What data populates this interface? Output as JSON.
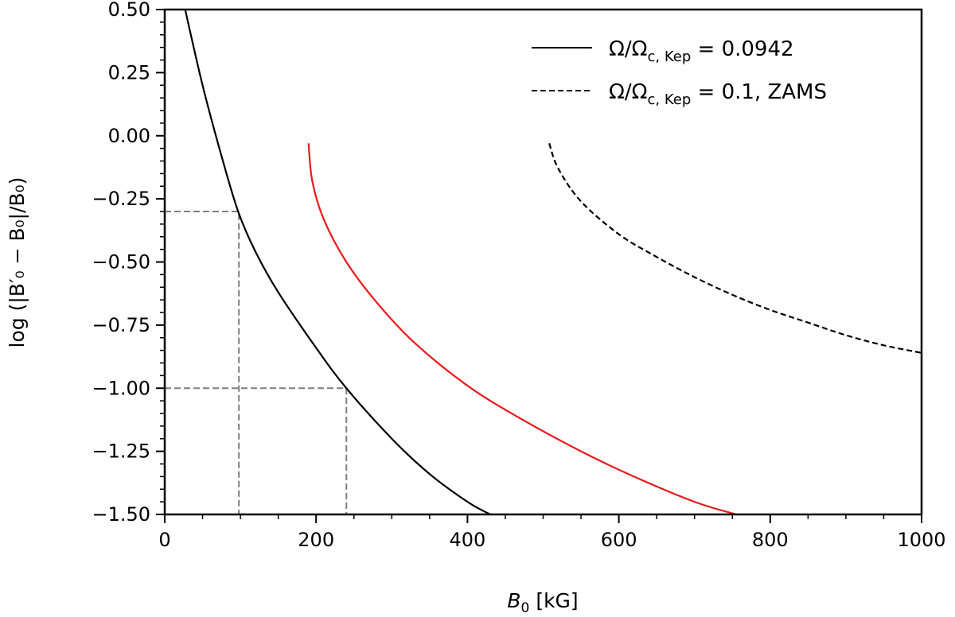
{
  "chart_data": {
    "type": "line",
    "xlabel": "B",
    "xlabel_sub": "0",
    "xlabel_unit": "[kG]",
    "ylabel": "log (|B′₀ − B₀|/B₀)",
    "xlim": [
      0,
      1000
    ],
    "ylim": [
      -1.5,
      0.5
    ],
    "xticks": [
      0,
      200,
      400,
      600,
      800,
      1000
    ],
    "xtick_labels": [
      "0",
      "200",
      "400",
      "600",
      "800",
      "1000"
    ],
    "yticks": [
      0.5,
      0.25,
      0.0,
      -0.25,
      -0.5,
      -0.75,
      -1.0,
      -1.25,
      -1.5
    ],
    "ytick_labels": [
      "0.50",
      "0.25",
      "0.00",
      "−0.25",
      "−0.50",
      "−0.75",
      "−1.00",
      "−1.25",
      "−1.50"
    ],
    "legend_position": "top-right",
    "series": [
      {
        "name": "Ω/Ωc, Kep = 0.0942",
        "legend_main": "Ω/Ω",
        "legend_sub": "c, Kep",
        "legend_tail": " = 0.0942",
        "color": "#000000",
        "style": "solid",
        "in_legend": true,
        "x": [
          27,
          50,
          75,
          97,
          120,
          150,
          200,
          240,
          300,
          350,
          400,
          430
        ],
        "y": [
          0.5,
          0.2,
          -0.08,
          -0.3,
          -0.46,
          -0.62,
          -0.84,
          -1.0,
          -1.2,
          -1.34,
          -1.45,
          -1.5
        ]
      },
      {
        "name": "Ω/Ωc, Kep = 0.1, ZAMS",
        "legend_main": "Ω/Ω",
        "legend_sub": "c, Kep",
        "legend_tail": " = 0.1, ZAMS",
        "color": "#000000",
        "style": "dashed",
        "in_legend": true,
        "x": [
          508,
          520,
          550,
          600,
          650,
          700,
          750,
          800,
          850,
          900,
          950,
          1000
        ],
        "y": [
          -0.03,
          -0.13,
          -0.26,
          -0.39,
          -0.48,
          -0.56,
          -0.63,
          -0.69,
          -0.74,
          -0.79,
          -0.83,
          -0.86
        ]
      },
      {
        "name": "red curve",
        "color": "#e8191c",
        "style": "solid",
        "in_legend": false,
        "x": [
          190,
          195,
          210,
          240,
          280,
          330,
          400,
          470,
          550,
          620,
          700,
          755
        ],
        "y": [
          -0.03,
          -0.18,
          -0.33,
          -0.5,
          -0.66,
          -0.82,
          -0.99,
          -1.12,
          -1.25,
          -1.35,
          -1.45,
          -1.5
        ]
      }
    ],
    "reference_lines": [
      {
        "name": "ref-line-100",
        "x": 98,
        "y": -0.3,
        "color": "#7f7f7f"
      },
      {
        "name": "ref-line-240",
        "x": 240,
        "y": -1.0,
        "color": "#7f7f7f"
      }
    ]
  }
}
